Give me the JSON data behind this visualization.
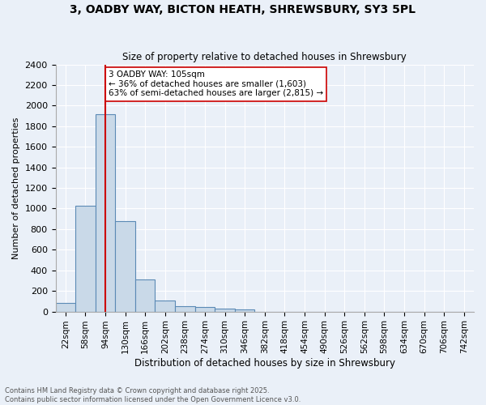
{
  "title": "3, OADBY WAY, BICTON HEATH, SHREWSBURY, SY3 5PL",
  "subtitle": "Size of property relative to detached houses in Shrewsbury",
  "xlabel": "Distribution of detached houses by size in Shrewsbury",
  "ylabel": "Number of detached properties",
  "bin_labels": [
    "22sqm",
    "58sqm",
    "94sqm",
    "130sqm",
    "166sqm",
    "202sqm",
    "238sqm",
    "274sqm",
    "310sqm",
    "346sqm",
    "382sqm",
    "418sqm",
    "454sqm",
    "490sqm",
    "526sqm",
    "562sqm",
    "598sqm",
    "634sqm",
    "670sqm",
    "706sqm",
    "742sqm"
  ],
  "bar_values": [
    85,
    1030,
    1920,
    880,
    315,
    110,
    50,
    45,
    25,
    20,
    0,
    0,
    0,
    0,
    0,
    0,
    0,
    0,
    0,
    0,
    0
  ],
  "bar_color": "#c9d9e8",
  "bar_edge_color": "#5b8ab5",
  "vline_x": 2.0,
  "vline_color": "#cc0000",
  "annotation_text": "3 OADBY WAY: 105sqm\n← 36% of detached houses are smaller (1,603)\n63% of semi-detached houses are larger (2,815) →",
  "annotation_box_color": "#ffffff",
  "annotation_box_edge": "#cc0000",
  "bg_color": "#eaf0f8",
  "plot_bg_color": "#eaf0f8",
  "footer_text": "Contains HM Land Registry data © Crown copyright and database right 2025.\nContains public sector information licensed under the Open Government Licence v3.0.",
  "ylim": [
    0,
    2400
  ],
  "yticks": [
    0,
    200,
    400,
    600,
    800,
    1000,
    1200,
    1400,
    1600,
    1800,
    2000,
    2200,
    2400
  ]
}
